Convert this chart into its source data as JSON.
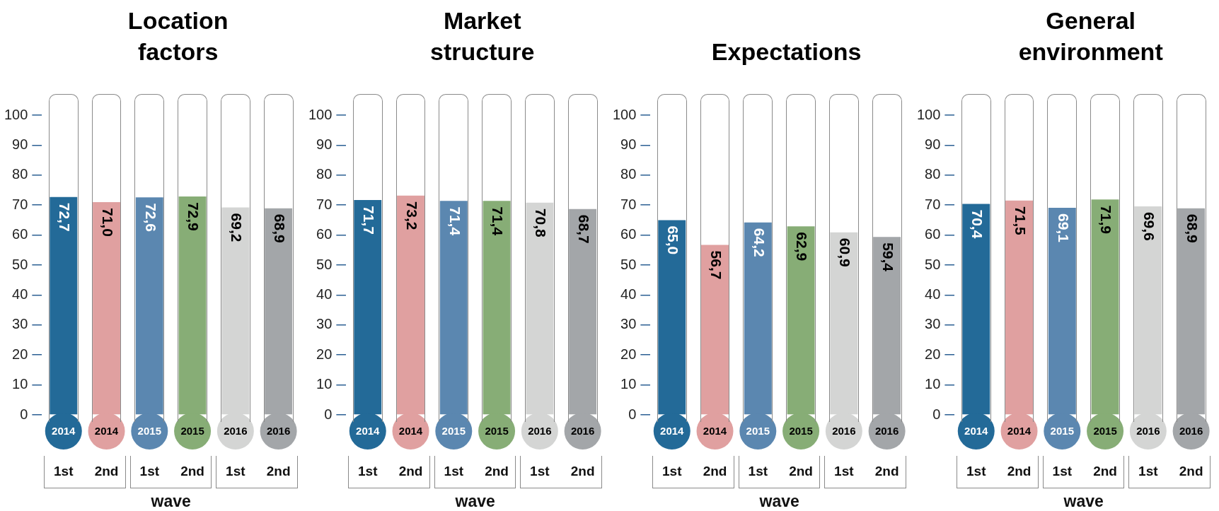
{
  "chart_data": [
    {
      "type": "bar",
      "title": "Location factors",
      "xlabel": "wave",
      "categories": [
        "2014",
        "2014",
        "2015",
        "2015",
        "2016",
        "2016"
      ],
      "values": [
        72.7,
        71.0,
        72.6,
        72.9,
        69.2,
        68.9
      ],
      "value_labels": [
        "72,7",
        "71,0",
        "72,6",
        "72,9",
        "69,2",
        "68,9"
      ],
      "colors": [
        "#236a98",
        "#e0a0a0",
        "#5b87b0",
        "#87ad76",
        "#d4d5d4",
        "#a3a6a9"
      ],
      "ylim": [
        0,
        100
      ],
      "yticks": [
        0,
        10,
        20,
        30,
        40,
        50,
        60,
        70,
        80,
        90,
        100
      ],
      "grid": false,
      "legend": false,
      "annotations": [
        "1st",
        "2nd",
        "1st",
        "2nd",
        "1st",
        "2nd"
      ]
    },
    {
      "type": "bar",
      "title": "Market structure",
      "xlabel": "wave",
      "categories": [
        "2014",
        "2014",
        "2015",
        "2015",
        "2016",
        "2016"
      ],
      "values": [
        71.7,
        73.2,
        71.4,
        71.4,
        70.8,
        68.7
      ],
      "value_labels": [
        "71,7",
        "73,2",
        "71,4",
        "71,4",
        "70,8",
        "68,7"
      ],
      "colors": [
        "#236a98",
        "#e0a0a0",
        "#5b87b0",
        "#87ad76",
        "#d4d5d4",
        "#a3a6a9"
      ],
      "ylim": [
        0,
        100
      ],
      "yticks": [
        0,
        10,
        20,
        30,
        40,
        50,
        60,
        70,
        80,
        90,
        100
      ],
      "grid": false,
      "legend": false,
      "annotations": [
        "1st",
        "2nd",
        "1st",
        "2nd",
        "1st",
        "2nd"
      ]
    },
    {
      "type": "bar",
      "title": "Expectations",
      "xlabel": "wave",
      "categories": [
        "2014",
        "2014",
        "2015",
        "2015",
        "2016",
        "2016"
      ],
      "values": [
        65.0,
        56.7,
        64.2,
        62.9,
        60.9,
        59.4
      ],
      "value_labels": [
        "65,0",
        "56,7",
        "64,2",
        "62,9",
        "60,9",
        "59,4"
      ],
      "colors": [
        "#236a98",
        "#e0a0a0",
        "#5b87b0",
        "#87ad76",
        "#d4d5d4",
        "#a3a6a9"
      ],
      "ylim": [
        0,
        100
      ],
      "yticks": [
        0,
        10,
        20,
        30,
        40,
        50,
        60,
        70,
        80,
        90,
        100
      ],
      "grid": false,
      "legend": false,
      "annotations": [
        "1st",
        "2nd",
        "1st",
        "2nd",
        "1st",
        "2nd"
      ]
    },
    {
      "type": "bar",
      "title": "General environment",
      "xlabel": "wave",
      "categories": [
        "2014",
        "2014",
        "2015",
        "2015",
        "2016",
        "2016"
      ],
      "values": [
        70.4,
        71.5,
        69.1,
        71.9,
        69.6,
        68.9
      ],
      "value_labels": [
        "70,4",
        "71,5",
        "69,1",
        "71,9",
        "69,6",
        "68,9"
      ],
      "colors": [
        "#236a98",
        "#e0a0a0",
        "#5b87b0",
        "#87ad76",
        "#d4d5d4",
        "#a3a6a9"
      ],
      "ylim": [
        0,
        100
      ],
      "yticks": [
        0,
        10,
        20,
        30,
        40,
        50,
        60,
        70,
        80,
        90,
        100
      ],
      "grid": false,
      "legend": false,
      "annotations": [
        "1st",
        "2nd",
        "1st",
        "2nd",
        "1st",
        "2nd"
      ]
    }
  ]
}
